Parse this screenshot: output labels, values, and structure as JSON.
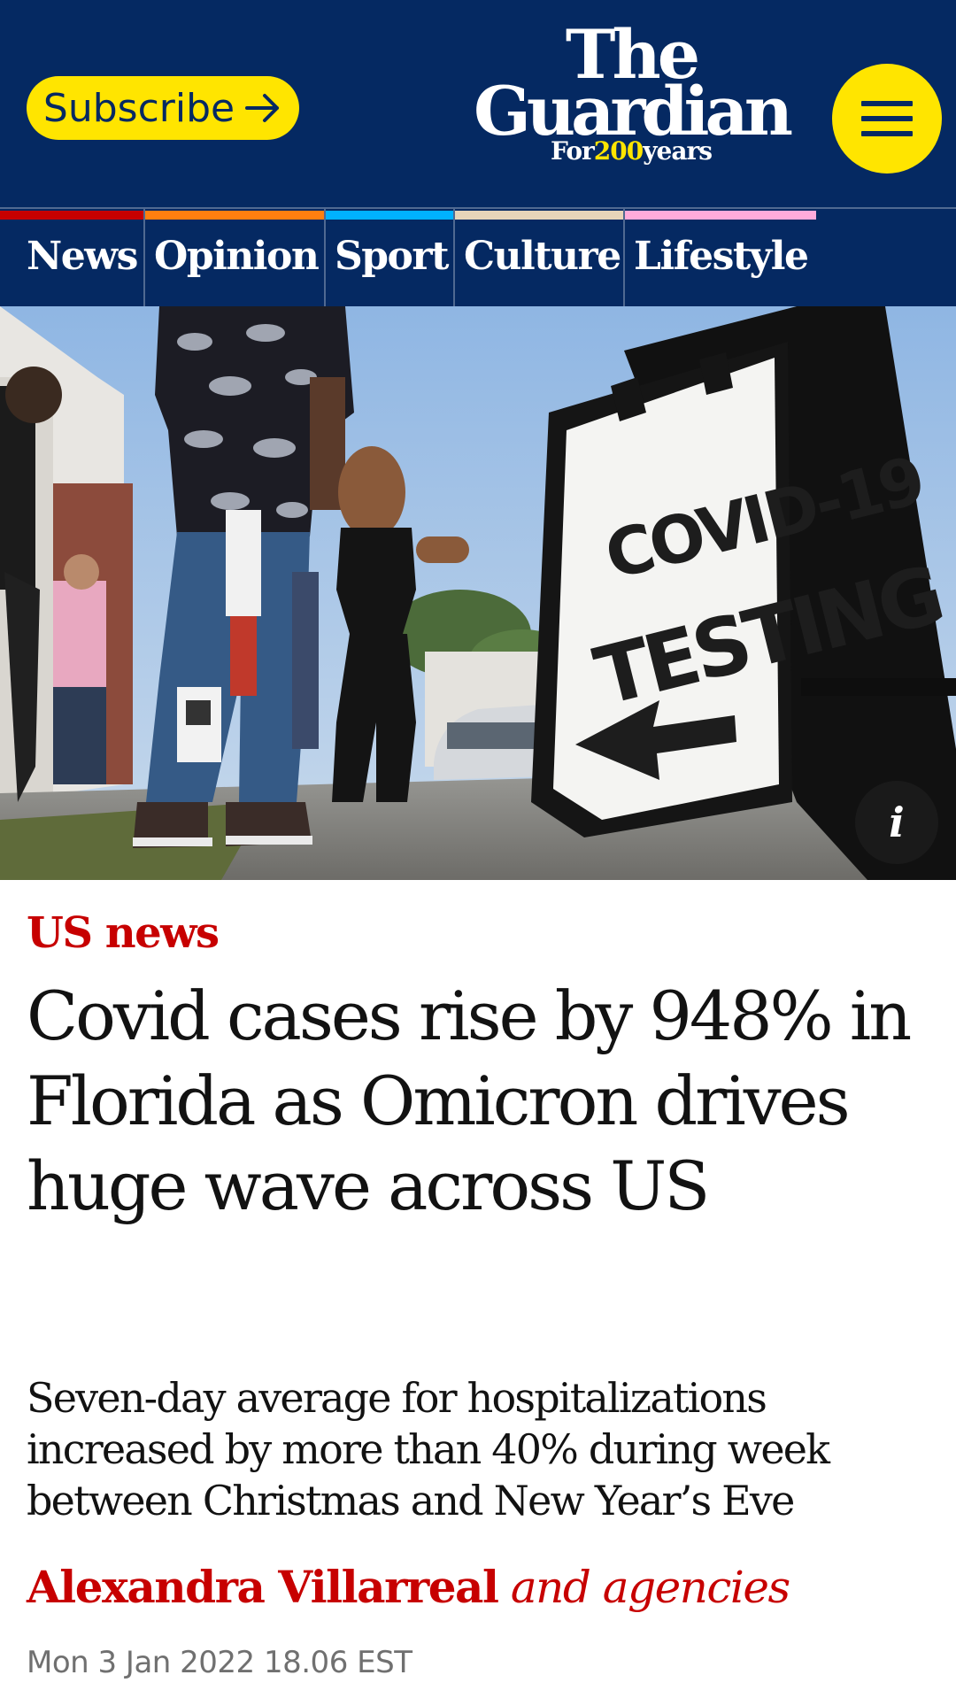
{
  "header": {
    "subscribe_label": "Subscribe",
    "logo": {
      "line1": "The",
      "line2": "Guardian",
      "tag_prefix": "For",
      "tag_number": "200",
      "tag_suffix": "years"
    },
    "menu_icon": "hamburger-menu-icon"
  },
  "nav": {
    "items": [
      {
        "label": "News",
        "accent": "#c70000"
      },
      {
        "label": "Opinion",
        "accent": "#ff7f0f"
      },
      {
        "label": "Sport",
        "accent": "#00b2ff"
      },
      {
        "label": "Culture",
        "accent": "#e7d4b9"
      },
      {
        "label": "Lifestyle",
        "accent": "#ffabdb"
      }
    ]
  },
  "hero": {
    "sign_line1": "COVID-19",
    "sign_line2": "TESTING",
    "info_label": "i"
  },
  "article": {
    "kicker": "US news",
    "headline": "Covid cases rise by 948% in Florida as Omicron drives huge wave across US",
    "standfirst": "Seven-day average for hospitalizations increased by more than 40% during week between Christmas and New Year’s Eve",
    "byline_author": "Alexandra Villarreal",
    "byline_suffix": "and agencies",
    "date": "Mon 3 Jan 2022 18.06 EST"
  },
  "colors": {
    "brand_blue": "#052962",
    "brand_yellow": "#ffe500",
    "news_red": "#c70000"
  }
}
